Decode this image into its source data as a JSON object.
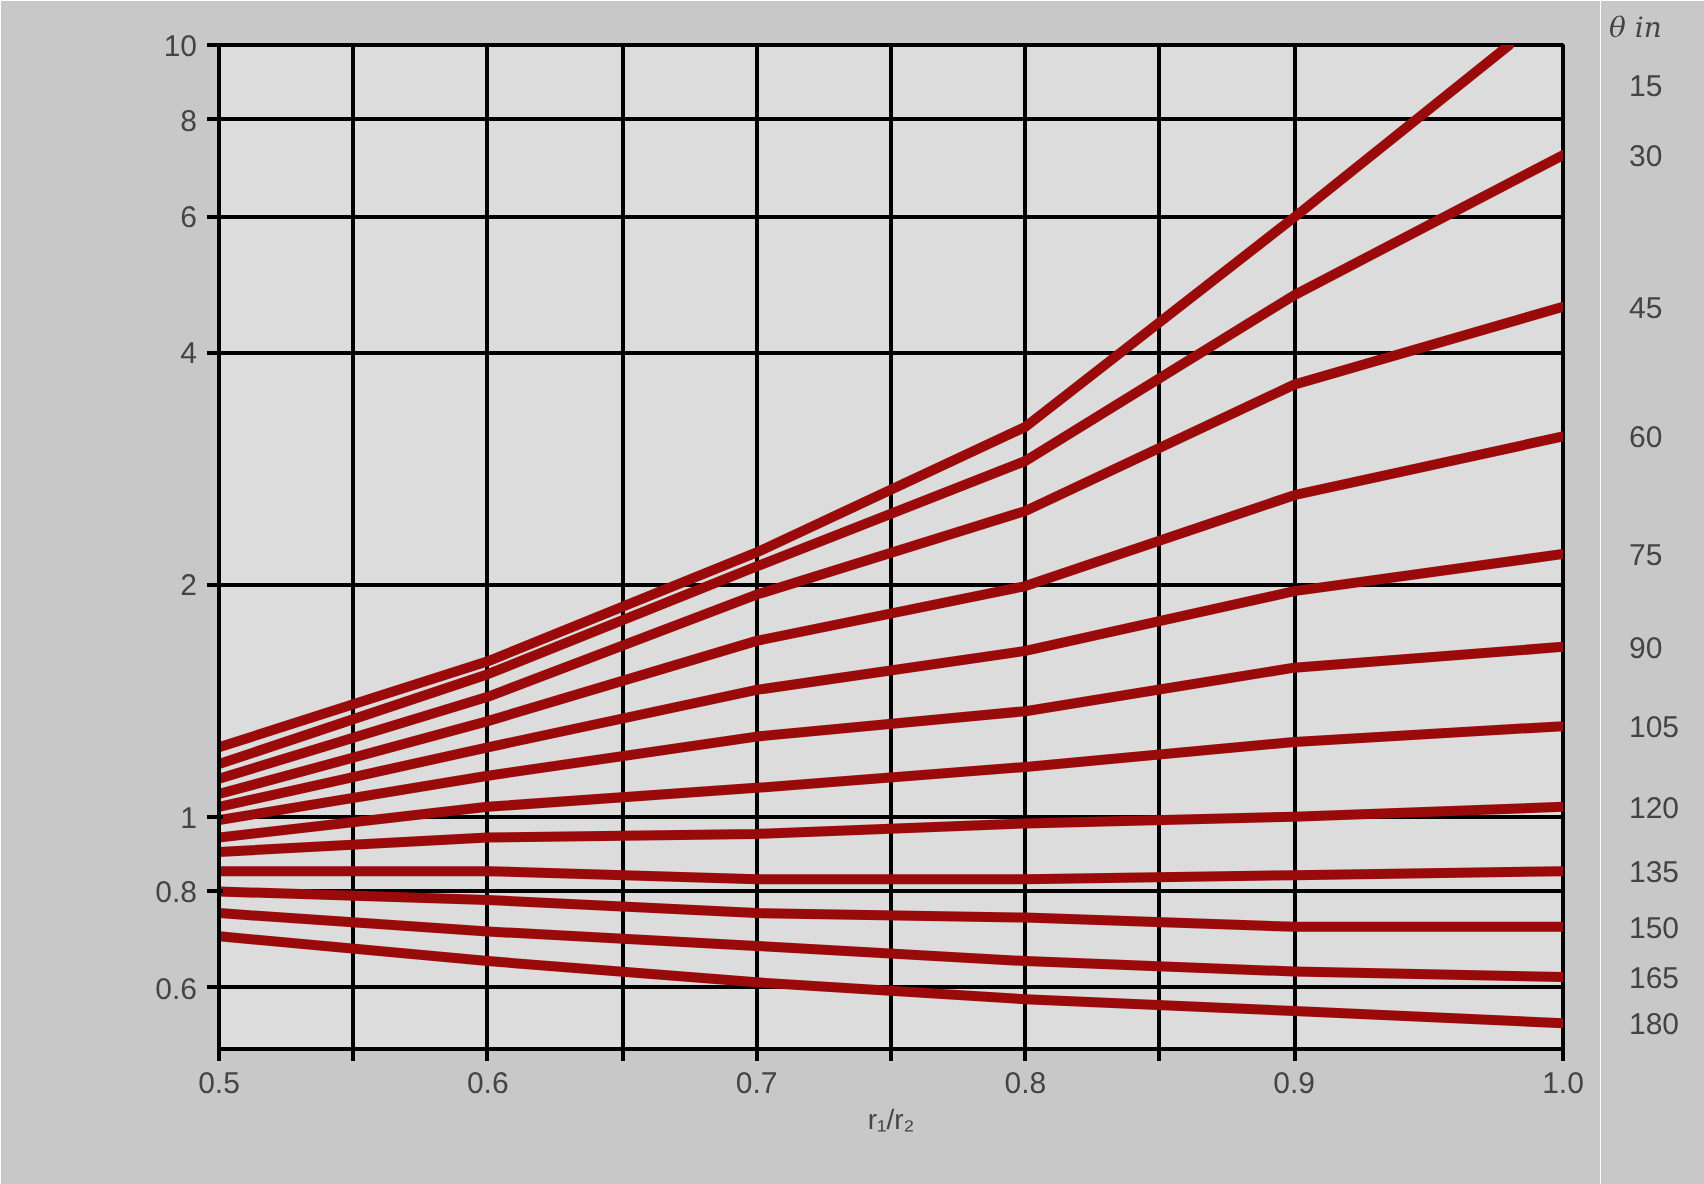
{
  "chart_data": {
    "type": "line",
    "xlabel": "r₁/r₂",
    "legend_title": "θ in",
    "log": "y",
    "grid": true,
    "marker": "none",
    "line_style": "solid",
    "x": [
      0.5,
      0.6,
      0.7,
      0.8,
      0.9,
      1.0
    ],
    "xlim": [
      0.5,
      1.0
    ],
    "ylim": [
      0.5,
      10
    ],
    "xticks": [
      0.5,
      {
        "value": 0.55,
        "label": null
      },
      0.6,
      {
        "value": 0.65,
        "label": null
      },
      0.7,
      {
        "value": 0.75,
        "label": null
      },
      0.8,
      {
        "value": 0.85,
        "label": null
      },
      0.9,
      {
        "value": 1.0,
        "label": "1.0"
      }
    ],
    "yticks": [
      0.6,
      0.8,
      1,
      2,
      4,
      6,
      8,
      10
    ],
    "series": [
      {
        "name": "15",
        "color": "#9b0a0a",
        "x": [
          0.5,
          0.6,
          0.7,
          0.8,
          0.9,
          0.98
        ],
        "values": [
          1.23,
          1.59,
          2.2,
          3.2,
          5.98,
          10
        ]
      },
      {
        "name": "30",
        "color": "#9b0a0a",
        "values": [
          1.17,
          1.53,
          2.11,
          2.89,
          4.74,
          7.2
        ]
      },
      {
        "name": "45",
        "color": "#9b0a0a",
        "values": [
          1.12,
          1.43,
          1.94,
          2.49,
          3.63,
          4.58
        ]
      },
      {
        "name": "60",
        "color": "#9b0a0a",
        "values": [
          1.07,
          1.33,
          1.69,
          1.99,
          2.61,
          3.11
        ]
      },
      {
        "name": "75",
        "color": "#9b0a0a",
        "values": [
          1.03,
          1.23,
          1.46,
          1.64,
          1.96,
          2.19
        ]
      },
      {
        "name": "90",
        "color": "#9b0a0a",
        "values": [
          0.99,
          1.13,
          1.27,
          1.37,
          1.56,
          1.66
        ]
      },
      {
        "name": "105",
        "color": "#9b0a0a",
        "values": [
          0.94,
          1.03,
          1.09,
          1.16,
          1.25,
          1.31
        ]
      },
      {
        "name": "120",
        "color": "#9b0a0a",
        "values": [
          0.9,
          0.94,
          0.95,
          0.98,
          1.0,
          1.03
        ]
      },
      {
        "name": "135",
        "color": "#9b0a0a",
        "values": [
          0.85,
          0.85,
          0.83,
          0.83,
          0.84,
          0.85
        ]
      },
      {
        "name": "150",
        "color": "#9b0a0a",
        "values": [
          0.8,
          0.78,
          0.75,
          0.74,
          0.72,
          0.72
        ]
      },
      {
        "name": "165",
        "color": "#9b0a0a",
        "values": [
          0.75,
          0.71,
          0.68,
          0.65,
          0.63,
          0.62
        ]
      },
      {
        "name": "180",
        "color": "#9b0a0a",
        "values": [
          0.7,
          0.65,
          0.61,
          0.58,
          0.56,
          0.54
        ]
      }
    ]
  }
}
